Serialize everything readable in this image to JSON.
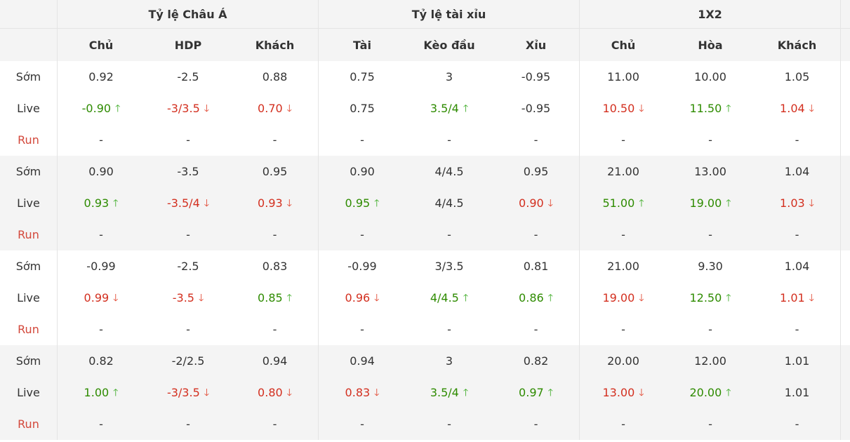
{
  "groups": [
    "Tỷ lệ Châu Á",
    "Tỷ lệ tài xỉu",
    "1X2"
  ],
  "columns": [
    "Chủ",
    "HDP",
    "Khách",
    "Tài",
    "Kèo đầu",
    "Xỉu",
    "Chủ",
    "Hòa",
    "Khách"
  ],
  "row_labels": {
    "early": "Sớm",
    "live": "Live",
    "run": "Run"
  },
  "arrows": {
    "up": "🡑",
    "down": "🡓"
  },
  "colors": {
    "up": "#2e8b00",
    "down": "#d32f1f",
    "run_label": "#d3483b",
    "shade": "#f4f4f4"
  },
  "matches": [
    {
      "early": [
        "0.92",
        "-2.5",
        "0.88",
        "0.75",
        "3",
        "-0.95",
        "11.00",
        "10.00",
        "1.05"
      ],
      "live": [
        {
          "v": "-0.90",
          "d": "up"
        },
        {
          "v": "-3/3.5",
          "d": "down"
        },
        {
          "v": "0.70",
          "d": "down"
        },
        {
          "v": "0.75",
          "d": ""
        },
        {
          "v": "3.5/4",
          "d": "up"
        },
        {
          "v": "-0.95",
          "d": ""
        },
        {
          "v": "10.50",
          "d": "down"
        },
        {
          "v": "11.50",
          "d": "up"
        },
        {
          "v": "1.04",
          "d": "down"
        }
      ],
      "run": [
        "-",
        "-",
        "-",
        "-",
        "-",
        "-",
        "-",
        "-",
        "-"
      ]
    },
    {
      "early": [
        "0.90",
        "-3.5",
        "0.95",
        "0.90",
        "4/4.5",
        "0.95",
        "21.00",
        "13.00",
        "1.04"
      ],
      "live": [
        {
          "v": "0.93",
          "d": "up"
        },
        {
          "v": "-3.5/4",
          "d": "down"
        },
        {
          "v": "0.93",
          "d": "down"
        },
        {
          "v": "0.95",
          "d": "up"
        },
        {
          "v": "4/4.5",
          "d": ""
        },
        {
          "v": "0.90",
          "d": "down"
        },
        {
          "v": "51.00",
          "d": "up"
        },
        {
          "v": "19.00",
          "d": "up"
        },
        {
          "v": "1.03",
          "d": "down"
        }
      ],
      "run": [
        "-",
        "-",
        "-",
        "-",
        "-",
        "-",
        "-",
        "-",
        "-"
      ]
    },
    {
      "early": [
        "-0.99",
        "-2.5",
        "0.83",
        "-0.99",
        "3/3.5",
        "0.81",
        "21.00",
        "9.30",
        "1.04"
      ],
      "live": [
        {
          "v": "0.99",
          "d": "down"
        },
        {
          "v": "-3.5",
          "d": "down"
        },
        {
          "v": "0.85",
          "d": "up"
        },
        {
          "v": "0.96",
          "d": "down"
        },
        {
          "v": "4/4.5",
          "d": "up"
        },
        {
          "v": "0.86",
          "d": "up"
        },
        {
          "v": "19.00",
          "d": "down"
        },
        {
          "v": "12.50",
          "d": "up"
        },
        {
          "v": "1.01",
          "d": "down"
        }
      ],
      "run": [
        "-",
        "-",
        "-",
        "-",
        "-",
        "-",
        "-",
        "-",
        "-"
      ]
    },
    {
      "early": [
        "0.82",
        "-2/2.5",
        "0.94",
        "0.94",
        "3",
        "0.82",
        "20.00",
        "12.00",
        "1.01"
      ],
      "live": [
        {
          "v": "1.00",
          "d": "up"
        },
        {
          "v": "-3/3.5",
          "d": "down"
        },
        {
          "v": "0.80",
          "d": "down"
        },
        {
          "v": "0.83",
          "d": "down"
        },
        {
          "v": "3.5/4",
          "d": "up"
        },
        {
          "v": "0.97",
          "d": "up"
        },
        {
          "v": "13.00",
          "d": "down"
        },
        {
          "v": "20.00",
          "d": "up"
        },
        {
          "v": "1.01",
          "d": ""
        }
      ],
      "run": [
        "-",
        "-",
        "-",
        "-",
        "-",
        "-",
        "-",
        "-",
        "-"
      ]
    }
  ]
}
